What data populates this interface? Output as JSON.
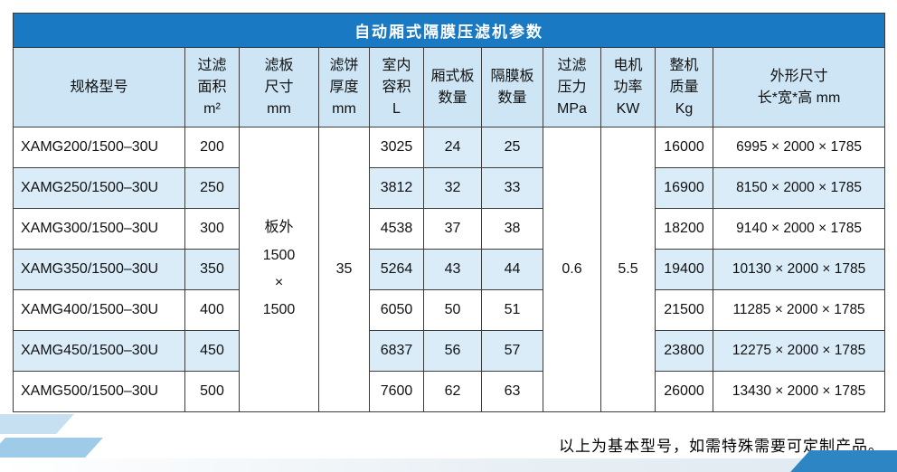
{
  "title": "自动厢式隔膜压滤机参数",
  "footnote": "以上为基本型号，如需特殊需要可定制产品。",
  "colors": {
    "title_bar": "#1a79c3",
    "header_bg": "#cde5f4",
    "stripe_bg": "#d9ecf8",
    "accent_blue": "#2e85c4"
  },
  "table": {
    "columns": [
      {
        "key": "model",
        "header_lines": [
          "规格型号"
        ]
      },
      {
        "key": "area",
        "header_lines": [
          "过滤",
          "面积",
          "m²"
        ]
      },
      {
        "key": "plate_size",
        "header_lines": [
          "滤板",
          "尺寸",
          "mm"
        ]
      },
      {
        "key": "cake_thickness",
        "header_lines": [
          "滤饼",
          "厚度",
          "mm"
        ]
      },
      {
        "key": "volume",
        "header_lines": [
          "室内",
          "容积",
          "L"
        ]
      },
      {
        "key": "chamber_plates",
        "header_lines": [
          "厢式板",
          "数量"
        ]
      },
      {
        "key": "diaphragm_plates",
        "header_lines": [
          "隔膜板",
          "数量"
        ]
      },
      {
        "key": "pressure",
        "header_lines": [
          "过滤",
          "压力",
          "MPa"
        ]
      },
      {
        "key": "motor_power",
        "header_lines": [
          "电机",
          "功率",
          "KW"
        ]
      },
      {
        "key": "weight",
        "header_lines": [
          "整机",
          "质量",
          "Kg"
        ]
      },
      {
        "key": "dimensions",
        "header_lines": [
          "外形尺寸",
          "长*宽*高 mm"
        ]
      }
    ],
    "merged_cells": {
      "plate_size_lines": [
        "板外",
        "1500",
        "×",
        "1500"
      ],
      "cake_thickness": "35",
      "pressure": "0.6",
      "motor_power": "5.5"
    },
    "rows": [
      {
        "model": "XAMG200/1500–30U",
        "area": "200",
        "volume": "3025",
        "chamber_plates": "24",
        "diaphragm_plates": "25",
        "weight": "16000",
        "dimensions": "6995 × 2000 × 1785"
      },
      {
        "model": "XAMG250/1500–30U",
        "area": "250",
        "volume": "3812",
        "chamber_plates": "32",
        "diaphragm_plates": "33",
        "weight": "16900",
        "dimensions": "8150 × 2000 × 1785"
      },
      {
        "model": "XAMG300/1500–30U",
        "area": "300",
        "volume": "4538",
        "chamber_plates": "37",
        "diaphragm_plates": "38",
        "weight": "18200",
        "dimensions": "9140 × 2000 × 1785"
      },
      {
        "model": "XAMG350/1500–30U",
        "area": "350",
        "volume": "5264",
        "chamber_plates": "43",
        "diaphragm_plates": "44",
        "weight": "19400",
        "dimensions": "10130 × 2000 × 1785"
      },
      {
        "model": "XAMG400/1500–30U",
        "area": "400",
        "volume": "6050",
        "chamber_plates": "50",
        "diaphragm_plates": "51",
        "weight": "21500",
        "dimensions": "11285 × 2000 × 1785"
      },
      {
        "model": "XAMG450/1500–30U",
        "area": "450",
        "volume": "6837",
        "chamber_plates": "56",
        "diaphragm_plates": "57",
        "weight": "23800",
        "dimensions": "12275 × 2000 × 1785"
      },
      {
        "model": "XAMG500/1500–30U",
        "area": "500",
        "volume": "7600",
        "chamber_plates": "62",
        "diaphragm_plates": "63",
        "weight": "26000",
        "dimensions": "13430 × 2000 × 1785"
      }
    ]
  }
}
